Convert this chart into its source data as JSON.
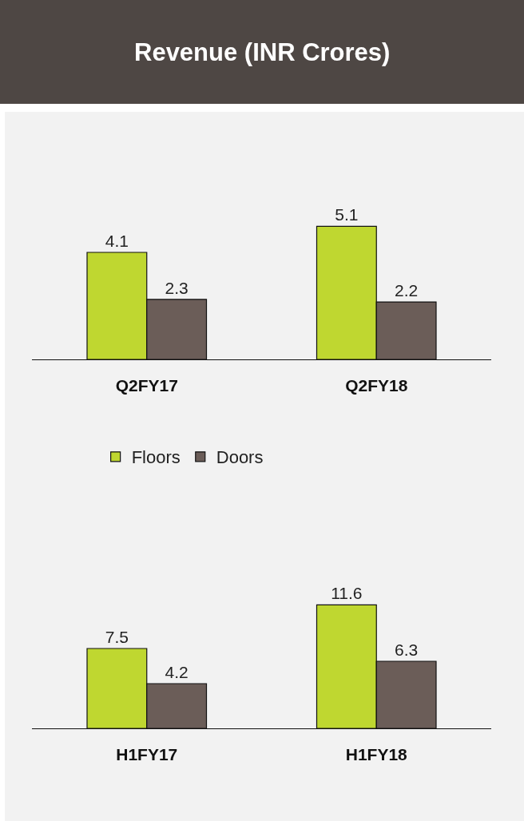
{
  "chart_data": [
    {
      "type": "bar",
      "title": "Revenue (INR Crores)",
      "categories": [
        "Q2FY17",
        "Q2FY18"
      ],
      "data_labels": true,
      "legend": "bottom",
      "series": [
        {
          "name": "Floors",
          "color": "#bfd730",
          "values": [
            4.1,
            5.1
          ]
        },
        {
          "name": "Doors",
          "color": "#6b5d58",
          "values": [
            2.3,
            2.2
          ]
        }
      ]
    },
    {
      "type": "bar",
      "categories": [
        "H1FY17",
        "H1FY18"
      ],
      "data_labels": true,
      "series": [
        {
          "color": "#bfd730",
          "values": [
            7.5,
            11.6
          ]
        },
        {
          "color": "#6b5d58",
          "values": [
            4.2,
            6.3
          ]
        }
      ]
    }
  ]
}
